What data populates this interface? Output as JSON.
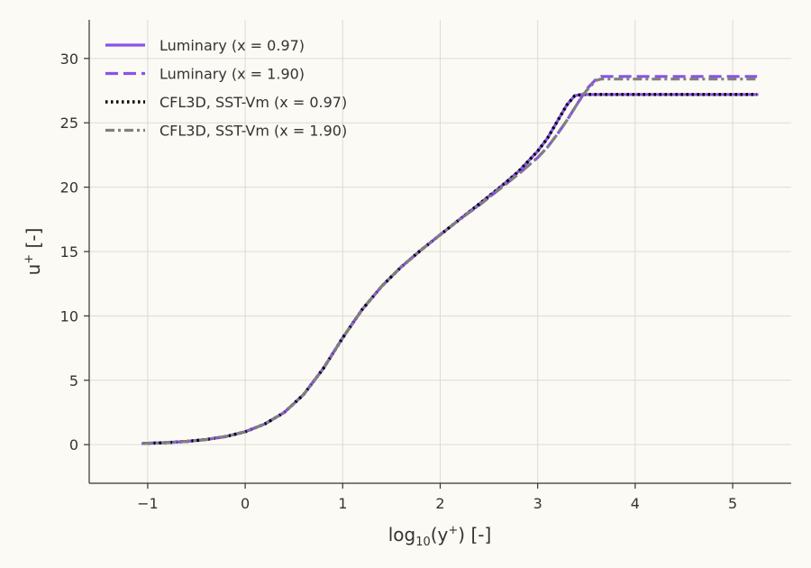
{
  "chart_data": {
    "type": "line",
    "title": "",
    "xlabel": "log₁₀(y⁺) [-]",
    "xlabel_base": "log",
    "xlabel_sub": "10",
    "xlabel_rest": "(y",
    "xlabel_sup": "+",
    "xlabel_end": ") [-]",
    "ylabel": "u⁺ [-]",
    "ylabel_base": "u",
    "ylabel_sup": "+",
    "ylabel_end": " [-]",
    "xlim": [
      -1.6,
      5.6
    ],
    "ylim": [
      -3,
      33
    ],
    "xticks": [
      -1,
      0,
      1,
      2,
      3,
      4,
      5
    ],
    "xtick_labels": [
      "−1",
      "0",
      "1",
      "2",
      "3",
      "4",
      "5"
    ],
    "yticks": [
      0,
      5,
      10,
      15,
      20,
      25,
      30
    ],
    "ytick_labels": [
      "0",
      "5",
      "10",
      "15",
      "20",
      "25",
      "30"
    ],
    "grid": true,
    "legend_position": "top-left",
    "series": [
      {
        "name": "Luminary (x = 0.97)",
        "color": "#8a52e8",
        "style": "solid",
        "x": [
          -1.05,
          -0.8,
          -0.6,
          -0.4,
          -0.2,
          0.0,
          0.2,
          0.4,
          0.6,
          0.8,
          1.0,
          1.2,
          1.4,
          1.6,
          1.8,
          2.0,
          2.2,
          2.4,
          2.6,
          2.8,
          3.0,
          3.1,
          3.2,
          3.3,
          3.38,
          3.45,
          3.6,
          4.0,
          4.5,
          5.0,
          5.25
        ],
        "y": [
          0.09,
          0.16,
          0.25,
          0.4,
          0.63,
          1.0,
          1.6,
          2.5,
          3.9,
          5.9,
          8.3,
          10.5,
          12.3,
          13.8,
          15.1,
          16.3,
          17.5,
          18.7,
          19.9,
          21.2,
          22.8,
          23.8,
          25.1,
          26.4,
          27.1,
          27.2,
          27.2,
          27.2,
          27.2,
          27.2,
          27.2
        ]
      },
      {
        "name": "Luminary (x = 1.90)",
        "color": "#8a52e8",
        "style": "dashed",
        "x": [
          -1.05,
          -0.8,
          -0.6,
          -0.4,
          -0.2,
          0.0,
          0.2,
          0.4,
          0.6,
          0.8,
          1.0,
          1.2,
          1.4,
          1.6,
          1.8,
          2.0,
          2.2,
          2.4,
          2.6,
          2.8,
          3.0,
          3.1,
          3.2,
          3.3,
          3.4,
          3.5,
          3.6,
          3.65,
          3.7,
          4.0,
          4.5,
          5.0,
          5.25
        ],
        "y": [
          0.09,
          0.16,
          0.25,
          0.4,
          0.63,
          1.0,
          1.6,
          2.5,
          3.9,
          5.9,
          8.3,
          10.5,
          12.3,
          13.8,
          15.1,
          16.3,
          17.5,
          18.6,
          19.8,
          21.0,
          22.3,
          23.1,
          24.1,
          25.2,
          26.4,
          27.6,
          28.4,
          28.6,
          28.6,
          28.6,
          28.6,
          28.6,
          28.6
        ]
      },
      {
        "name": "CFL3D, SST-Vm (x = 0.97)",
        "color": "#000000",
        "style": "dotted",
        "x": [
          -1.05,
          -0.8,
          -0.6,
          -0.4,
          -0.2,
          0.0,
          0.2,
          0.4,
          0.6,
          0.8,
          1.0,
          1.2,
          1.4,
          1.6,
          1.8,
          2.0,
          2.2,
          2.4,
          2.6,
          2.8,
          3.0,
          3.1,
          3.2,
          3.3,
          3.38,
          3.45,
          3.6,
          4.0,
          4.5,
          5.0,
          5.25
        ],
        "y": [
          0.09,
          0.16,
          0.25,
          0.4,
          0.63,
          1.0,
          1.6,
          2.5,
          3.9,
          5.9,
          8.3,
          10.5,
          12.3,
          13.8,
          15.1,
          16.3,
          17.5,
          18.7,
          19.9,
          21.2,
          22.8,
          23.8,
          25.1,
          26.4,
          27.1,
          27.2,
          27.2,
          27.2,
          27.2,
          27.2,
          27.2
        ]
      },
      {
        "name": "CFL3D, SST-Vm (x = 1.90)",
        "color": "#808080",
        "style": "dashdot",
        "x": [
          -1.05,
          -0.8,
          -0.6,
          -0.4,
          -0.2,
          0.0,
          0.2,
          0.4,
          0.6,
          0.8,
          1.0,
          1.2,
          1.4,
          1.6,
          1.8,
          2.0,
          2.2,
          2.4,
          2.6,
          2.8,
          3.0,
          3.1,
          3.2,
          3.3,
          3.4,
          3.5,
          3.6,
          3.65,
          3.7,
          4.0,
          4.5,
          5.0,
          5.25
        ],
        "y": [
          0.09,
          0.16,
          0.25,
          0.4,
          0.63,
          1.0,
          1.6,
          2.5,
          3.9,
          5.9,
          8.3,
          10.5,
          12.3,
          13.8,
          15.1,
          16.3,
          17.5,
          18.6,
          19.8,
          21.0,
          22.3,
          23.1,
          24.1,
          25.2,
          26.4,
          27.5,
          28.3,
          28.4,
          28.4,
          28.4,
          28.4,
          28.4,
          28.4
        ]
      }
    ]
  }
}
